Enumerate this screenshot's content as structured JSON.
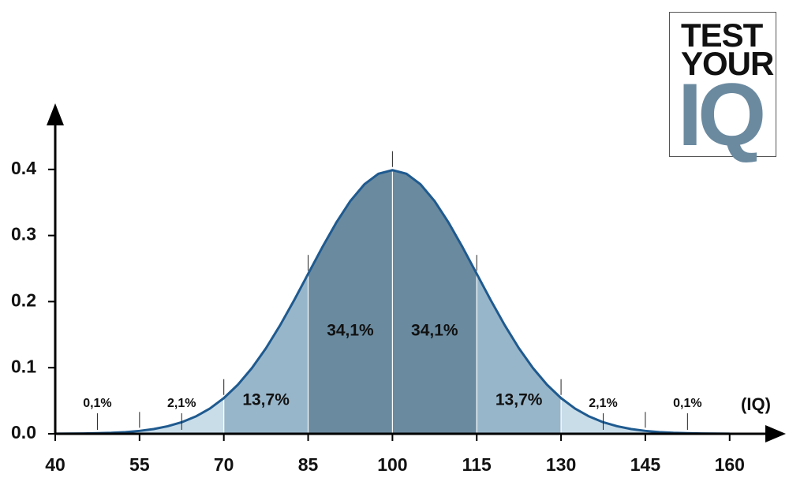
{
  "chart_data": {
    "type": "density",
    "x_label": "(IQ)",
    "x": [
      40,
      42.5,
      45,
      47.5,
      50,
      52.5,
      55,
      57.5,
      60,
      62.5,
      65,
      67.5,
      70,
      72.5,
      75,
      77.5,
      80,
      82.5,
      85,
      87.5,
      90,
      92.5,
      95,
      97.5,
      100,
      102.5,
      105,
      107.5,
      110,
      112.5,
      115,
      117.5,
      120,
      122.5,
      125,
      127.5,
      130,
      132.5,
      135,
      137.5,
      140,
      142.5,
      145,
      147.5,
      150,
      152.5,
      155,
      157.5,
      160
    ],
    "values": [
      0.0001,
      0.0003,
      0.0005,
      0.0009,
      0.0015,
      0.0026,
      0.0044,
      0.0072,
      0.0114,
      0.0175,
      0.0262,
      0.0381,
      0.054,
      0.0743,
      0.0995,
      0.1295,
      0.164,
      0.202,
      0.242,
      0.2819,
      0.3194,
      0.3521,
      0.3774,
      0.3934,
      0.3989,
      0.3934,
      0.3774,
      0.3521,
      0.3194,
      0.2819,
      0.242,
      0.202,
      0.164,
      0.1295,
      0.0995,
      0.0743,
      0.054,
      0.0381,
      0.0262,
      0.0175,
      0.0114,
      0.0072,
      0.0044,
      0.0026,
      0.0015,
      0.0009,
      0.0005,
      0.0003,
      0.0001
    ],
    "color": "#1f5a8f",
    "bands": {
      "edges": [
        40,
        55,
        70,
        85,
        100,
        115,
        130,
        145,
        160
      ],
      "shares": [
        0.1,
        2.1,
        13.7,
        34.1,
        34.1,
        13.7,
        2.1,
        0.1
      ],
      "value_labels": [
        "0,1%",
        "2,1%",
        "13,7%",
        "34,1%",
        "34,1%",
        "13,7%",
        "2,1%",
        "0,1%"
      ],
      "colors": [
        "#c9dde9",
        "#c9dde9",
        "#98b6ca",
        "#6a8a9f",
        "#6a8a9f",
        "#98b6ca",
        "#c9dde9",
        "#c9dde9"
      ]
    },
    "xlim": [
      40,
      170
    ],
    "ylim": [
      0,
      0.5
    ],
    "xticks": [
      40,
      55,
      70,
      85,
      100,
      115,
      130,
      145,
      160
    ],
    "yticks": [
      {
        "value": 0,
        "label": "0.0"
      },
      0.1,
      0.2,
      0.3,
      0.4
    ]
  },
  "logo": [
    "TEST",
    "YOUR",
    "IQ"
  ]
}
